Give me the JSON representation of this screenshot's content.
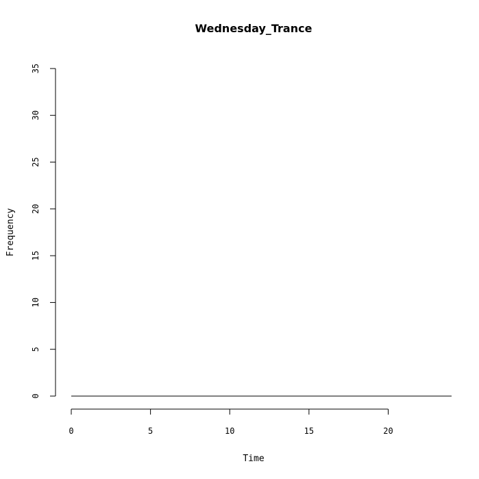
{
  "chart_data": {
    "type": "line",
    "title": "Wednesday_Trance",
    "xlabel": "Time",
    "ylabel": "Frequency",
    "xlim": [
      0,
      24
    ],
    "ylim": [
      0,
      35
    ],
    "x_ticks": [
      0,
      5,
      10,
      15,
      20
    ],
    "y_ticks": [
      0,
      5,
      10,
      15,
      20,
      25,
      30,
      35
    ],
    "grid": false,
    "series": [
      {
        "x": [
          0,
          24
        ],
        "y": [
          0,
          0
        ],
        "color": "#000000"
      }
    ]
  }
}
